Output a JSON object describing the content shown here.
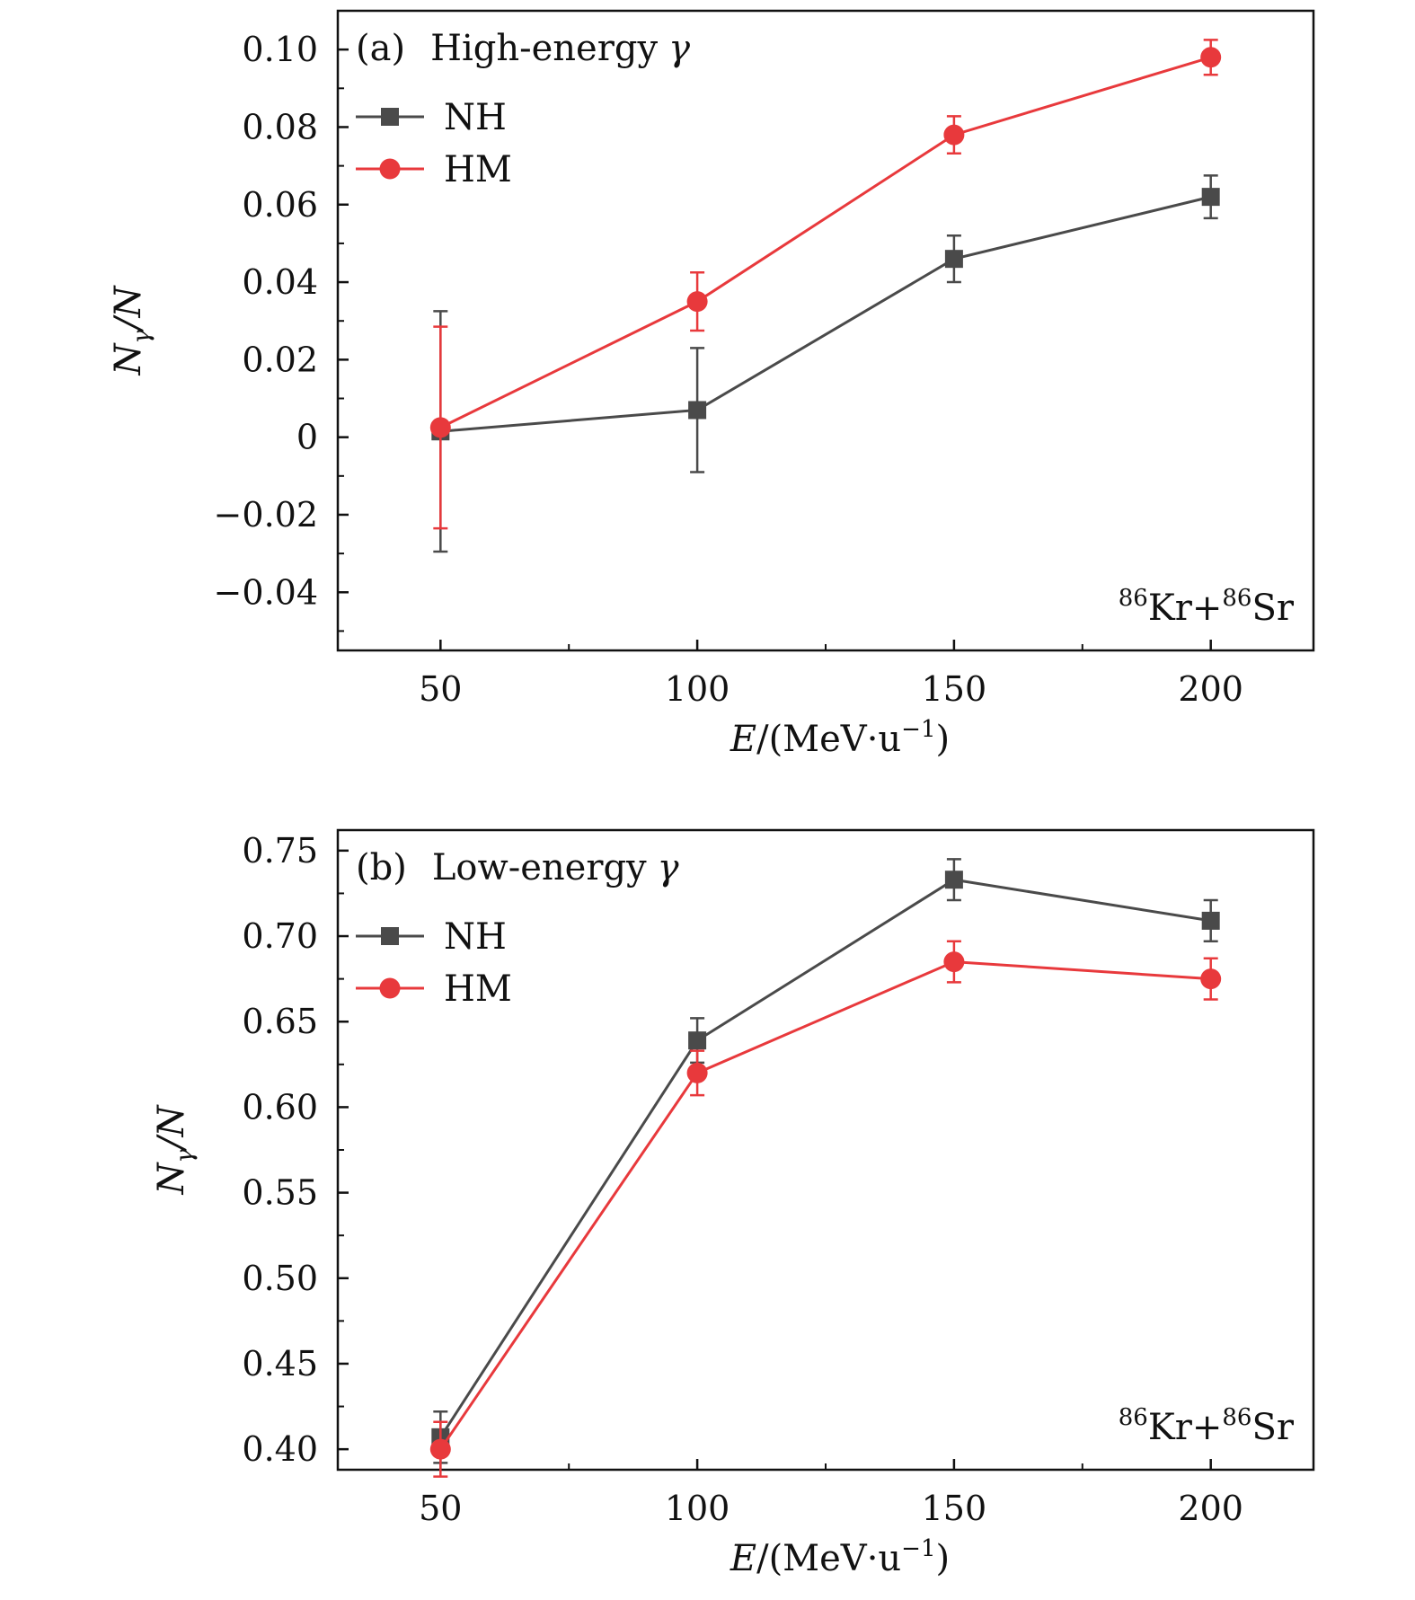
{
  "chart_data": [
    {
      "type": "line",
      "panel_label": "(a)",
      "title_text": "High-energy",
      "title_symbol": "γ",
      "xlabel": {
        "var": "E",
        "unit_open": "/(MeV·u",
        "exp": "−1",
        "unit_close": ")"
      },
      "ylabel": {
        "var": "N",
        "sub": "γ",
        "rest": "/N"
      },
      "x": [
        50,
        100,
        150,
        200
      ],
      "xlim": [
        30,
        220
      ],
      "xticks": [
        50,
        100,
        150,
        200
      ],
      "xtick_labels": [
        "50",
        "100",
        "150",
        "200"
      ],
      "ylim": [
        -0.055,
        0.11
      ],
      "yticks": [
        -0.04,
        -0.02,
        0,
        0.02,
        0.04,
        0.06,
        0.08,
        0.1
      ],
      "ytick_labels": [
        "−0.04",
        "−0.02",
        "0",
        "0.02",
        "0.04",
        "0.06",
        "0.08",
        "0.10"
      ],
      "yminor_step": 0.01,
      "series": [
        {
          "name": "NH",
          "marker": "square",
          "color": "#4a4a4a",
          "values": [
            0.0015,
            0.007,
            0.046,
            0.062
          ],
          "errors": [
            0.031,
            0.016,
            0.006,
            0.0055
          ]
        },
        {
          "name": "HM",
          "marker": "circle",
          "color": "#e8393c",
          "values": [
            0.0025,
            0.035,
            0.078,
            0.098
          ],
          "errors": [
            0.026,
            0.0075,
            0.0048,
            0.0045
          ]
        }
      ],
      "legend_location": "top-left",
      "annotation": {
        "a1": "86",
        "t1": "Kr+",
        "a2": "86",
        "t2": "Sr",
        "location": "bottom-right"
      }
    },
    {
      "type": "line",
      "panel_label": "(b)",
      "title_text": "Low-energy",
      "title_symbol": "γ",
      "xlabel": {
        "var": "E",
        "unit_open": "/(MeV·u",
        "exp": "−1",
        "unit_close": ")"
      },
      "ylabel": {
        "var": "N",
        "sub": "γ",
        "rest": "/N"
      },
      "x": [
        50,
        100,
        150,
        200
      ],
      "xlim": [
        30,
        220
      ],
      "xticks": [
        50,
        100,
        150,
        200
      ],
      "xtick_labels": [
        "50",
        "100",
        "150",
        "200"
      ],
      "ylim": [
        0.388,
        0.762
      ],
      "yticks": [
        0.4,
        0.45,
        0.5,
        0.55,
        0.6,
        0.65,
        0.7,
        0.75
      ],
      "ytick_labels": [
        "0.40",
        "0.45",
        "0.50",
        "0.55",
        "0.60",
        "0.65",
        "0.70",
        "0.75"
      ],
      "yminor_step": 0.025,
      "series": [
        {
          "name": "NH",
          "marker": "square",
          "color": "#4a4a4a",
          "values": [
            0.407,
            0.639,
            0.733,
            0.709
          ],
          "errors": [
            0.015,
            0.013,
            0.012,
            0.012
          ]
        },
        {
          "name": "HM",
          "marker": "circle",
          "color": "#e8393c",
          "values": [
            0.4,
            0.62,
            0.685,
            0.675
          ],
          "errors": [
            0.016,
            0.013,
            0.012,
            0.012
          ]
        }
      ],
      "legend_location": "top-left",
      "annotation": {
        "a1": "86",
        "t1": "Kr+",
        "a2": "86",
        "t2": "Sr",
        "location": "bottom-right"
      }
    }
  ]
}
